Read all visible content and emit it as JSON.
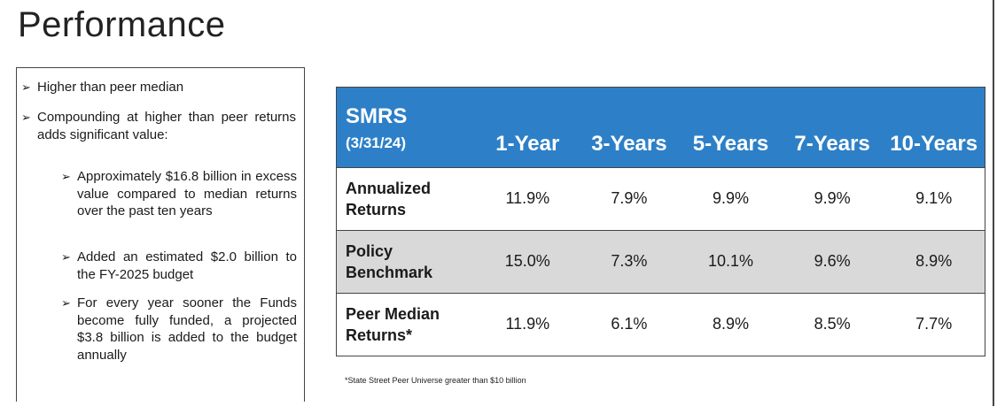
{
  "title": "Performance",
  "bullets": {
    "b1": "Higher than peer median",
    "b2": "Compounding at higher than peer returns adds significant value:",
    "s1": "Approximately $16.8 billion in excess value compared to median returns over the past ten years",
    "s2": "Added an estimated $2.0 billion to the FY-2025 budget",
    "s3": "For every year sooner the Funds become fully funded, a projected $3.8 billion is added to the budget annually",
    "arrow_glyph": "➢"
  },
  "table": {
    "corner_title": "SMRS",
    "corner_date": "(3/31/24)",
    "columns": [
      "1-Year",
      "3-Years",
      "5-Years",
      "7-Years",
      "10-Years"
    ],
    "rows": [
      {
        "label": "Annualized Returns",
        "values": [
          "11.9%",
          "7.9%",
          "9.9%",
          "9.9%",
          "9.1%"
        ]
      },
      {
        "label": "Policy Benchmark",
        "values": [
          "15.0%",
          "7.3%",
          "10.1%",
          "9.6%",
          "8.9%"
        ]
      },
      {
        "label": "Peer Median Returns*",
        "values": [
          "11.9%",
          "6.1%",
          "8.9%",
          "8.5%",
          "7.7%"
        ]
      }
    ],
    "header_color": "#2d80c7",
    "shaded_row_color": "#d9d9d9"
  },
  "footnote": "*State Street Peer Universe greater than $10 billion"
}
